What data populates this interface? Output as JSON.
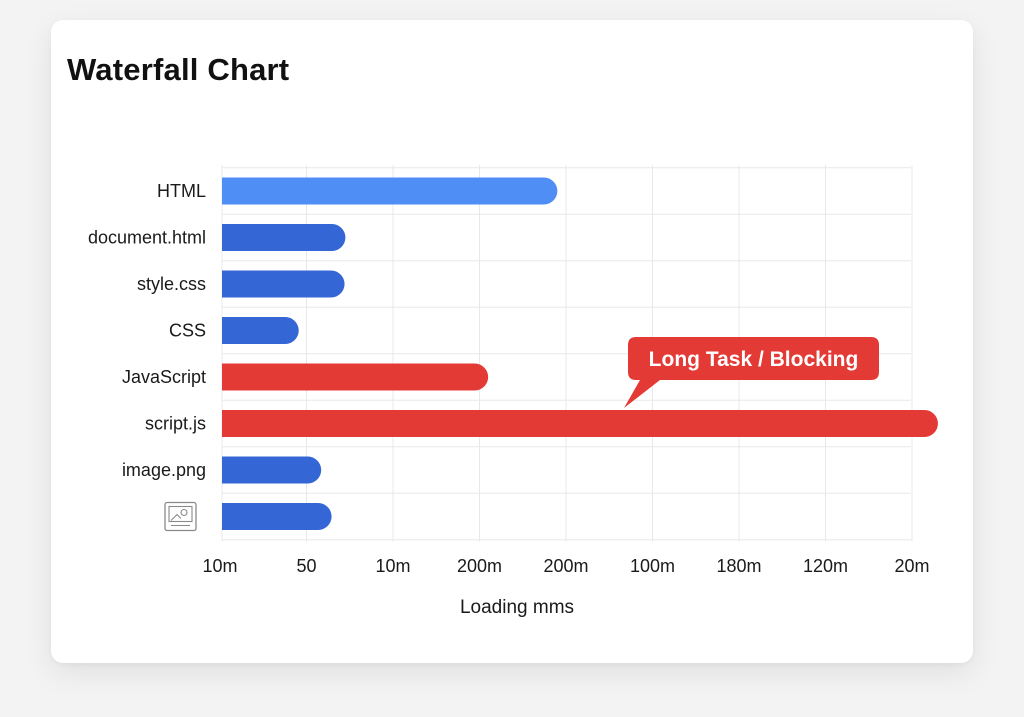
{
  "chart_data": {
    "type": "bar",
    "title": "Waterfall Chart",
    "xlabel": "Loading mms",
    "ylabel": "",
    "x_tick_labels": [
      "10m",
      "50",
      "10m",
      "200m",
      "200m",
      "100m",
      "180m",
      "120m",
      "20m"
    ],
    "xlim": [
      0,
      8
    ],
    "grid": true,
    "rows": [
      {
        "label": "HTML",
        "start": 0,
        "end": 3.9,
        "category": "document"
      },
      {
        "label": "document.html",
        "start": 0,
        "end": 1.45,
        "category": "resource"
      },
      {
        "label": "style.css",
        "start": 0,
        "end": 1.44,
        "category": "resource"
      },
      {
        "label": "CSS",
        "start": 0,
        "end": 0.91,
        "category": "resource"
      },
      {
        "label": "JavaScript",
        "start": 0,
        "end": 3.1,
        "category": "blocking"
      },
      {
        "label": "script.js",
        "start": 0,
        "end": 8.3,
        "category": "blocking"
      },
      {
        "label": "image.png",
        "start": 0,
        "end": 1.17,
        "category": "resource"
      },
      {
        "label": "",
        "icon": "image-file-icon",
        "start": 0,
        "end": 1.29,
        "category": "resource"
      }
    ],
    "annotation": {
      "text": "Long Task / Blocking",
      "target_row": "script.js"
    },
    "colors": {
      "document": "#4f8ef5",
      "resource": "#3466d6",
      "blocking": "#e33a36",
      "grid": "#e8e8ec",
      "callout": "#e33a36"
    }
  }
}
